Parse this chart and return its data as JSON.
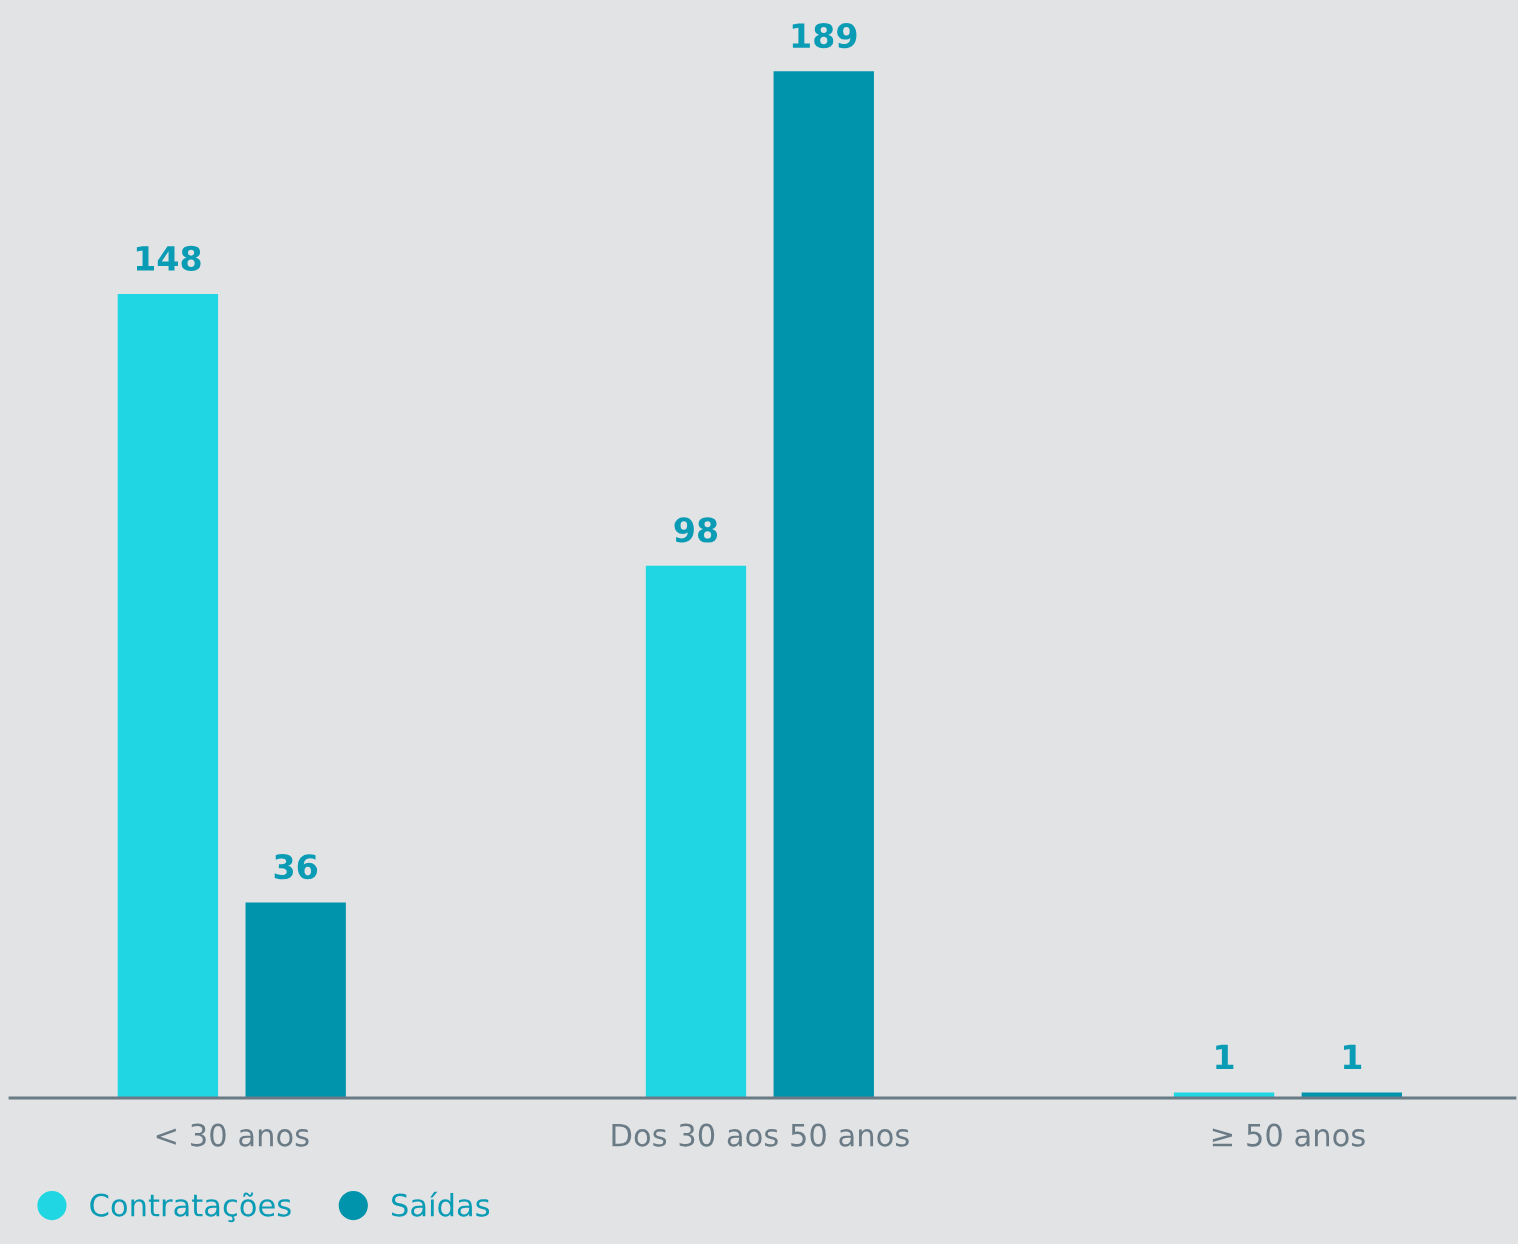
{
  "chart_data": {
    "type": "bar",
    "categories": [
      "< 30 anos",
      "Dos 30 aos 50 anos",
      "≥ 50 anos"
    ],
    "series": [
      {
        "name": "Contratações",
        "color": "#1fd6e2",
        "values": [
          148,
          98,
          1
        ]
      },
      {
        "name": "Saídas",
        "color": "#0094ac",
        "values": [
          36,
          189,
          1
        ]
      }
    ],
    "data_labels": true,
    "legend": "bottom left",
    "grid": false
  }
}
